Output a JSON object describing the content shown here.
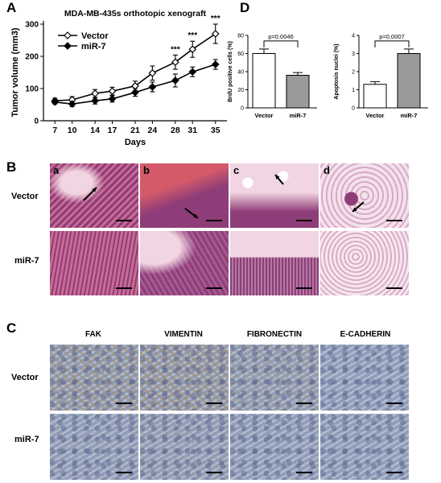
{
  "panel_letters": {
    "A": "A",
    "B": "B",
    "C": "C",
    "D": "D"
  },
  "panelB": {
    "rows": [
      "Vector",
      "miR-7"
    ],
    "tile_letters": [
      "a",
      "b",
      "c",
      "d"
    ],
    "colors": {
      "he_pink": "#c96c94",
      "he_purple": "#8f3d78",
      "he_pale": "#f1d5e2"
    }
  },
  "panelC": {
    "columns": [
      "FAK",
      "VIMENTIN",
      "FIBRONECTIN",
      "E-CADHERIN"
    ],
    "rows": [
      "Vector",
      "miR-7"
    ],
    "colors": {
      "ihc_blue": "#8f9fbd",
      "ihc_brown": "#a88a5f"
    }
  },
  "chart_data": [
    {
      "type": "line",
      "title": "MDA-MB-435s orthotopic xenograft",
      "xlabel": "Days",
      "ylabel": "Tumor volume (mm3)",
      "x": [
        7,
        10,
        14,
        17,
        21,
        24,
        28,
        31,
        35
      ],
      "ylim": [
        0,
        300
      ],
      "yticks": [
        0,
        100,
        200,
        300
      ],
      "series": [
        {
          "name": "Vector",
          "marker": "diamond",
          "values": [
            62,
            65,
            85,
            92,
            108,
            148,
            182,
            222,
            270
          ],
          "errors": [
            8,
            10,
            12,
            12,
            15,
            22,
            22,
            25,
            30
          ]
        },
        {
          "name": "miR-7",
          "marker": "diamond",
          "values": [
            58,
            52,
            62,
            68,
            88,
            105,
            125,
            152,
            175
          ],
          "errors": [
            6,
            8,
            10,
            10,
            12,
            15,
            20,
            15,
            15
          ]
        }
      ],
      "annotations": [
        {
          "x": 28,
          "text": "***"
        },
        {
          "x": 31,
          "text": "***"
        },
        {
          "x": 35,
          "text": "***"
        }
      ],
      "legend": "top-left"
    },
    {
      "type": "bar",
      "categories": [
        "Vector",
        "miR-7"
      ],
      "values": [
        60,
        36
      ],
      "errors": [
        5,
        3
      ],
      "colors": [
        "#ffffff",
        "#9a9a9a"
      ],
      "ylabel": "BrdU positive cells (%)",
      "ylim": [
        0,
        80
      ],
      "yticks": [
        0,
        20,
        40,
        60,
        80
      ],
      "annotation": "p=0.0046"
    },
    {
      "type": "bar",
      "categories": [
        "Vector",
        "miR-7"
      ],
      "values": [
        1.3,
        3.0
      ],
      "errors": [
        0.15,
        0.25
      ],
      "colors": [
        "#ffffff",
        "#9a9a9a"
      ],
      "ylabel": "Apoptosis nuclei (%)",
      "ylim": [
        0,
        4
      ],
      "yticks": [
        0,
        1,
        2,
        3,
        4
      ],
      "annotation": "p=0.0007"
    }
  ]
}
